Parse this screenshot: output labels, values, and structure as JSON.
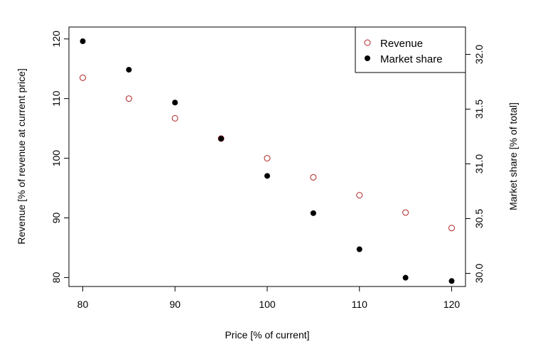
{
  "chart_data": {
    "type": "scatter",
    "title": "",
    "xlabel": "Price [% of current]",
    "ylabel": "Revenue [% of revenue at current price]",
    "y2label": "Market share [% of total]",
    "x": [
      80,
      85,
      90,
      95,
      100,
      105,
      110,
      115,
      120
    ],
    "xlim": [
      78.5,
      121.5
    ],
    "ylim": [
      78.5,
      122
    ],
    "y2lim": [
      29.88,
      32.25
    ],
    "xticks": [
      "80",
      "90",
      "100",
      "110",
      "120"
    ],
    "yticks": [
      "80",
      "90",
      "100",
      "110",
      "120"
    ],
    "y2ticks": [
      "30.0",
      "30.5",
      "31.0",
      "31.5",
      "32.0"
    ],
    "grid": false,
    "legend_position": "top-right",
    "series": [
      {
        "name": "Revenue",
        "axis": "left",
        "marker": "open-circle",
        "color": "#b22222",
        "values": [
          113.5,
          110.0,
          106.7,
          103.3,
          100.0,
          96.8,
          93.8,
          90.9,
          88.3
        ]
      },
      {
        "name": "Market share",
        "axis": "right",
        "marker": "filled-circle",
        "color": "#000000",
        "values": [
          32.12,
          31.86,
          31.56,
          31.23,
          30.89,
          30.55,
          30.22,
          29.96,
          29.93
        ]
      }
    ]
  }
}
